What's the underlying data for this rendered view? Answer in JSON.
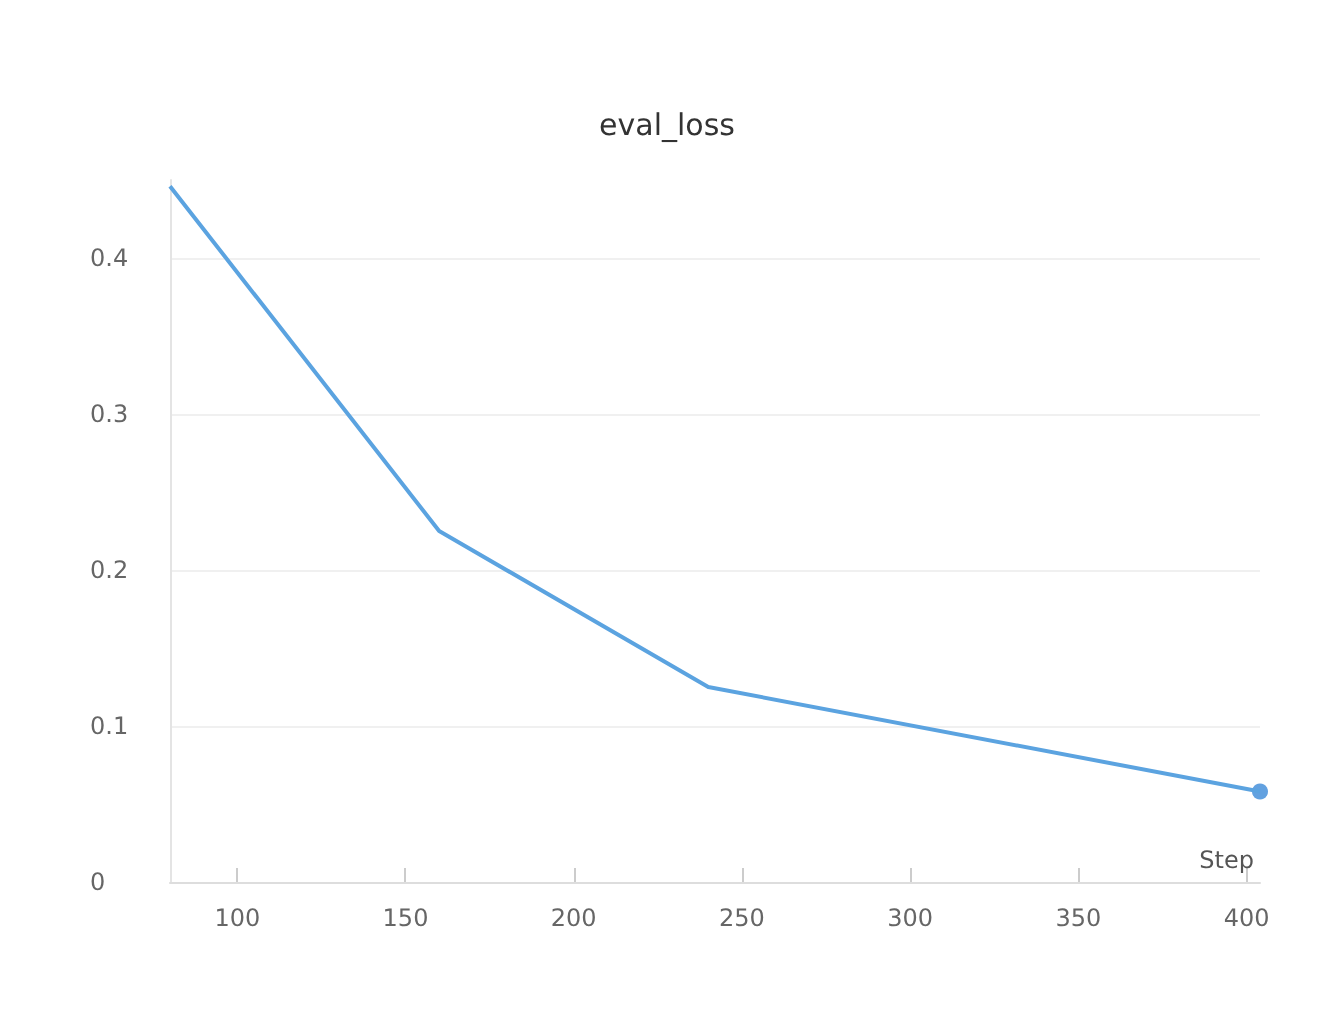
{
  "chart_data": {
    "type": "line",
    "title": "eval_loss",
    "xlabel": "Step",
    "xlim": [
      80,
      404
    ],
    "xticks": [
      100,
      150,
      200,
      250,
      300,
      350,
      400
    ],
    "ylim": [
      0,
      0.45
    ],
    "yticks": [
      0,
      0.1,
      0.2,
      0.3,
      0.4
    ],
    "grid": "y",
    "series": [
      {
        "color": "#5ba3e0",
        "x": [
          80,
          160,
          240,
          404
        ],
        "values": [
          0.446,
          0.225,
          0.125,
          0.058
        ]
      },
      {
        "type": "scatter",
        "color": "#3b8ad8",
        "x": [
          404
        ],
        "values": [
          0.058
        ],
        "marker": "circle"
      }
    ]
  }
}
